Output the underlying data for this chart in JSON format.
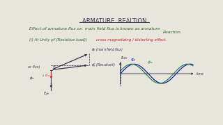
{
  "background_color": "#e8e5dc",
  "title": "ARMATURE  REALTION",
  "line1": "Effect of armature flux on  main field flux is known as armature",
  "line1b": "Reaction.",
  "line2_black": "(i) At Unity pf (Resistive load)) ",
  "line2_red": "cross magnetizing / distorting effect.",
  "sine1_color": "#1a1aaa",
  "sine2_color": "#2a8a4a",
  "text_color_red": "#cc2222",
  "text_color_dark": "#333355",
  "text_color_green": "#2a6a2a",
  "arrow_color": "#333355",
  "red_arrow_color": "#cc2222"
}
